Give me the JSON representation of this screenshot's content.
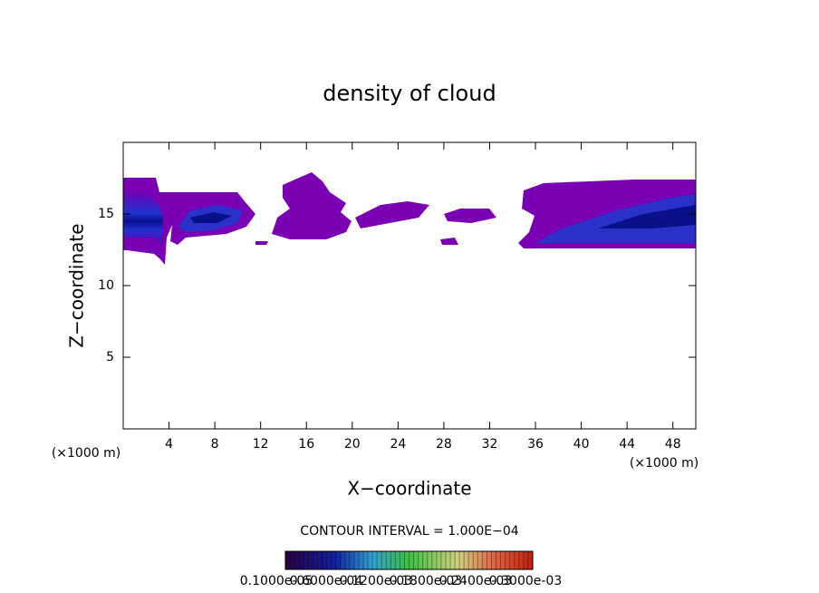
{
  "chart_data": {
    "type": "contour",
    "title": "density of cloud",
    "x_label": "X−coordinate",
    "y_label": "Z−coordinate",
    "x_unit": "(×1000 m)",
    "y_unit": "(×1000 m)",
    "xlim": [
      0,
      50
    ],
    "xticks": [
      4,
      8,
      12,
      16,
      20,
      24,
      28,
      32,
      36,
      40,
      44,
      48
    ],
    "ylim": [
      0,
      20
    ],
    "yticks": [
      5,
      10,
      15
    ],
    "contour_interval": "CONTOUR INTERVAL = 1.000E−04",
    "colorbar_labels": [
      "0.1000e-05",
      "0.6000e-04",
      "0.1200e-03",
      "0.1800e-03",
      "0.2400e-03",
      "0.3000e-03"
    ]
  }
}
